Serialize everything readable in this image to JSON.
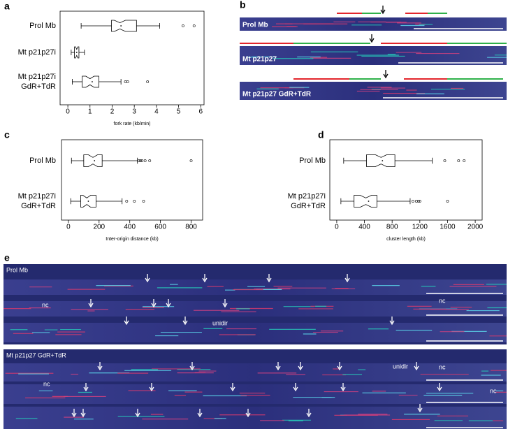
{
  "chart_data": [
    {
      "type": "box",
      "panel": "a",
      "xlabel": "fork rate (kb/min)",
      "categories": [
        [
          "Prol Mb"
        ],
        [
          "Mt p21p27i"
        ],
        [
          "Mt p21p27i",
          "GdR+TdR"
        ]
      ],
      "boxes": [
        {
          "whislo": 0.6,
          "q1": 1.97,
          "med": 2.35,
          "q3": 3.1,
          "whishi": 4.15,
          "mean": 2.4,
          "fliers": [
            5.2,
            5.7
          ]
        },
        {
          "whislo": 0.15,
          "q1": 0.3,
          "med": 0.4,
          "q3": 0.5,
          "whishi": 0.75,
          "mean": 0.4,
          "fliers": []
        },
        {
          "whislo": 0.2,
          "q1": 0.65,
          "med": 1.0,
          "q3": 1.4,
          "whishi": 2.4,
          "mean": 1.1,
          "fliers": [
            2.6,
            2.7,
            3.6
          ]
        }
      ],
      "xlim": [
        -0.35,
        6.15
      ],
      "xticks": [
        0,
        1,
        2,
        3,
        4,
        5,
        6
      ]
    },
    {
      "type": "box",
      "panel": "c",
      "xlabel": "Inter-origin distance (kb)",
      "categories": [
        [
          "Prol Mb"
        ],
        [
          "Mt p21p27i",
          "GdR+TdR"
        ]
      ],
      "boxes": [
        {
          "whislo": 20,
          "q1": 100,
          "med": 160,
          "q3": 220,
          "whishi": 450,
          "mean": 170,
          "fliers": [
            460,
            470,
            480,
            500,
            530,
            800
          ]
        },
        {
          "whislo": 15,
          "q1": 80,
          "med": 120,
          "q3": 180,
          "whishi": 350,
          "mean": 130,
          "fliers": [
            380,
            430,
            490
          ]
        }
      ],
      "xlim": [
        -45,
        875
      ],
      "xticks": [
        0,
        200,
        400,
        600,
        800
      ]
    },
    {
      "type": "box",
      "panel": "d",
      "xlabel": "cluster length (kb)",
      "categories": [
        [
          "Prol Mb"
        ],
        [
          "Mt p21p27i",
          "GdR+TdR"
        ]
      ],
      "boxes": [
        {
          "whislo": 100,
          "q1": 430,
          "med": 640,
          "q3": 840,
          "whishi": 1380,
          "mean": 660,
          "fliers": [
            1560,
            1760,
            1840
          ]
        },
        {
          "whislo": 60,
          "q1": 250,
          "med": 420,
          "q3": 580,
          "whishi": 1060,
          "mean": 460,
          "fliers": [
            1100,
            1150,
            1180,
            1200,
            1600
          ]
        }
      ],
      "xlim": [
        -100,
        2100
      ],
      "xticks": [
        0,
        400,
        800,
        1200,
        1600,
        2000
      ]
    }
  ],
  "panel_b": {
    "letter": "b",
    "labels": [
      "Prol Mb",
      "Mt p21p27",
      "Mt p21p27 GdR+TdR"
    ]
  },
  "panel_e": {
    "letter": "e",
    "groups": [
      {
        "title": "Prol Mb",
        "notes": [
          "nc",
          "nc",
          "unidir"
        ]
      },
      {
        "title": "Mt p21p27 GdR+TdR",
        "notes": [
          "unidir",
          "nc",
          "nc",
          "nc"
        ]
      }
    ]
  }
}
